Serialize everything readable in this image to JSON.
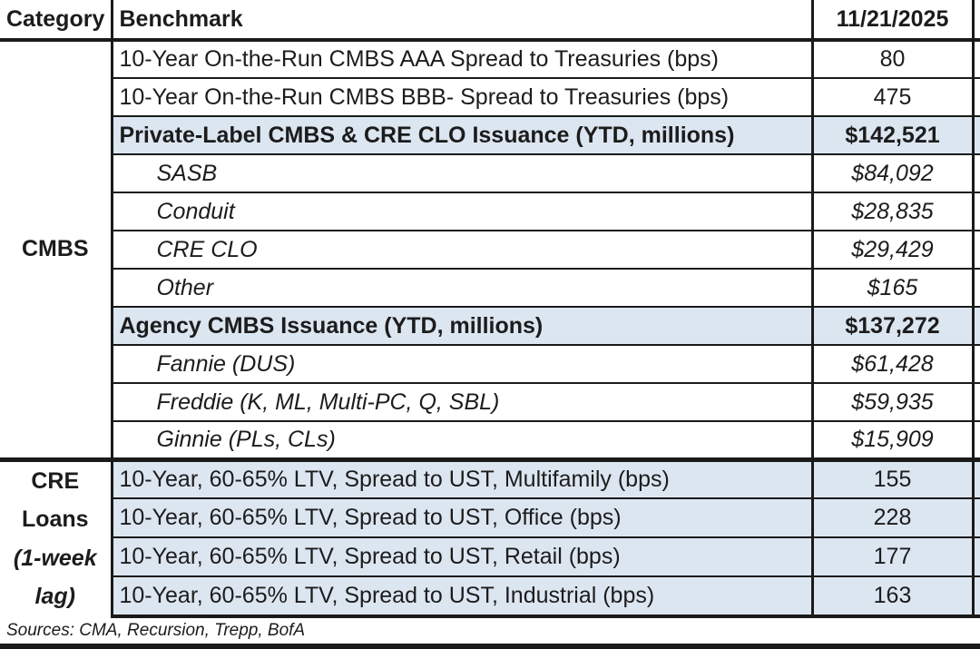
{
  "columns": {
    "category": "Category",
    "benchmark": "Benchmark",
    "date": "11/21/2025"
  },
  "sections": [
    {
      "category": "CMBS",
      "rows": [
        {
          "benchmark": "10-Year On-the-Run CMBS AAA Spread to Treasuries (bps)",
          "value": "80"
        },
        {
          "benchmark": "10-Year On-the-Run CMBS BBB- Spread to Treasuries (bps)",
          "value": "475"
        },
        {
          "benchmark": "Private-Label CMBS & CRE CLO Issuance (YTD, millions)",
          "value": "$142,521"
        },
        {
          "benchmark": "SASB",
          "value": "$84,092"
        },
        {
          "benchmark": "Conduit",
          "value": "$28,835"
        },
        {
          "benchmark": "CRE CLO",
          "value": "$29,429"
        },
        {
          "benchmark": "Other",
          "value": "$165"
        },
        {
          "benchmark": "Agency CMBS Issuance (YTD, millions)",
          "value": "$137,272"
        },
        {
          "benchmark": "Fannie (DUS)",
          "value": "$61,428"
        },
        {
          "benchmark": "Freddie (K, ML, Multi-PC, Q, SBL)",
          "value": "$59,935"
        },
        {
          "benchmark": "Ginnie (PLs, CLs)",
          "value": "$15,909"
        }
      ]
    },
    {
      "category_lines": [
        "CRE",
        "Loans",
        "(1-week",
        "lag)"
      ],
      "rows": [
        {
          "benchmark": "10-Year, 60-65% LTV, Spread to UST, Multifamily (bps)",
          "value": "155"
        },
        {
          "benchmark": "10-Year, 60-65% LTV, Spread to UST, Office (bps)",
          "value": "228"
        },
        {
          "benchmark": "10-Year, 60-65% LTV, Spread to UST, Retail (bps)",
          "value": "177"
        },
        {
          "benchmark": "10-Year, 60-65% LTV, Spread to UST, Industrial (bps)",
          "value": "163"
        }
      ]
    }
  ],
  "footer": {
    "sources": "Sources: CMA, Recursion, Trepp, BofA"
  },
  "colors": {
    "highlight": "#dce6f1",
    "border": "#1a1a1a"
  }
}
